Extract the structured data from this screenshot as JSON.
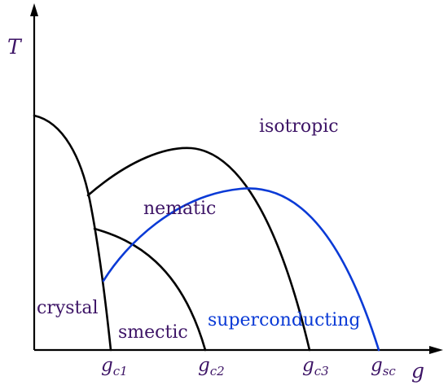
{
  "colors": {
    "axes": "#000000",
    "boundary": "#000000",
    "label_text": "#3d1466",
    "superconducting": "#0a3ad6"
  },
  "axes": {
    "y_label": "T",
    "x_label": "g"
  },
  "ticks": [
    {
      "base": "g",
      "sub": "c1"
    },
    {
      "base": "g",
      "sub": "c2"
    },
    {
      "base": "g",
      "sub": "c3"
    },
    {
      "base": "g",
      "sub": "sc"
    }
  ],
  "phases": {
    "isotropic": "isotropic",
    "nematic": "nematic",
    "crystal": "crystal",
    "smectic": "smectic",
    "superconducting": "superconducting"
  }
}
